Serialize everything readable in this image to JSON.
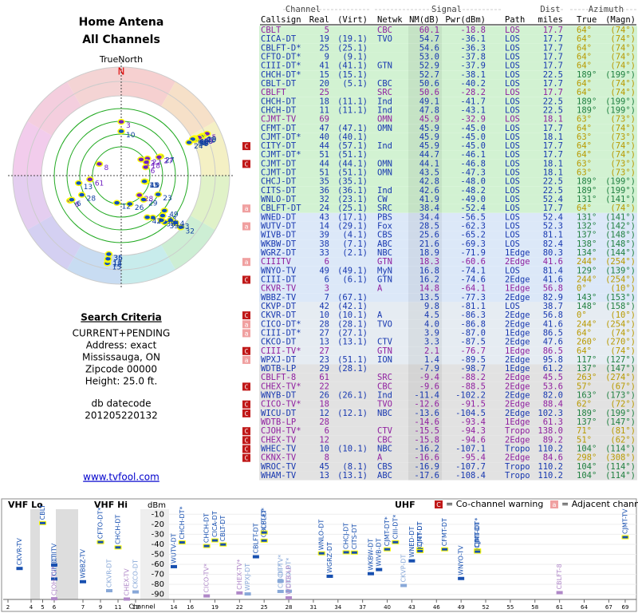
{
  "header": {
    "title": "Home Antena",
    "subtitle": "All Channels",
    "north_label": "TrueNorth",
    "north": "N"
  },
  "criteria": {
    "heading": "Search Criteria",
    "lines": [
      "CURRENT+PENDING",
      "Address: exact",
      "Mississauga, ON",
      "Zipcode 00000",
      "Height: 25.0 ft."
    ],
    "db_label": "db datecode",
    "db_value": "201205220132"
  },
  "link": "www.tvfool.com",
  "table": {
    "group_headers": [
      "Channel",
      "Signal",
      "Dist",
      "Azimuth"
    ],
    "columns": [
      "Callsign",
      "Real",
      "(Virt)",
      "Netwk",
      "NM(dB)",
      "Pwr(dBm)",
      "Path",
      "miles",
      "True",
      "(Magn)"
    ],
    "rows": [
      {
        "callsign": "CBLT",
        "real": 5,
        "netwk": "CBC",
        "nm": "60.1",
        "pwr": "-18.8",
        "path": "LOS",
        "miles": "17.7",
        "true": "64°",
        "magn": "(74°)"
      },
      {
        "callsign": "CICA-DT",
        "real": 19,
        "virt": "(19.1)",
        "netwk": "TVO",
        "nm": "54.7",
        "pwr": "-36.1",
        "path": "LOS",
        "miles": "17.7",
        "true": "64°",
        "magn": "(74°)"
      },
      {
        "callsign": "CBLFT-D*",
        "real": 25,
        "virt": "(25.1)",
        "nm": "54.6",
        "pwr": "-36.3",
        "path": "LOS",
        "miles": "17.7",
        "true": "64°",
        "magn": "(74°)"
      },
      {
        "callsign": "CFTO-DT*",
        "real": 9,
        "virt": "(9.1)",
        "nm": "53.0",
        "pwr": "-37.8",
        "path": "LOS",
        "miles": "17.7",
        "true": "64°",
        "magn": "(74°)"
      },
      {
        "callsign": "CIII-DT*",
        "real": 41,
        "virt": "(41.1)",
        "netwk": "GTN",
        "nm": "52.9",
        "pwr": "-37.9",
        "path": "LOS",
        "miles": "17.7",
        "true": "64°",
        "magn": "(74°)"
      },
      {
        "callsign": "CHCH-DT*",
        "real": 15,
        "virt": "(15.1)",
        "nm": "52.7",
        "pwr": "-38.1",
        "path": "LOS",
        "miles": "22.5",
        "true": "189°",
        "magn": "(199°)"
      },
      {
        "callsign": "CBLT-DT",
        "real": 20,
        "virt": "(5.1)",
        "netwk": "CBC",
        "nm": "50.6",
        "pwr": "-40.2",
        "path": "LOS",
        "miles": "17.7",
        "true": "64°",
        "magn": "(74°)"
      },
      {
        "callsign": "CBLFT",
        "real": 25,
        "netwk": "SRC",
        "nm": "50.6",
        "pwr": "-28.2",
        "path": "LOS",
        "miles": "17.7",
        "true": "64°",
        "magn": "(74°)"
      },
      {
        "callsign": "CHCH-DT",
        "real": 18,
        "virt": "(11.1)",
        "netwk": "Ind",
        "nm": "49.1",
        "pwr": "-41.7",
        "path": "LOS",
        "miles": "22.5",
        "true": "189°",
        "magn": "(199°)"
      },
      {
        "callsign": "CHCH-DT",
        "real": 11,
        "virt": "(11.1)",
        "netwk": "Ind",
        "nm": "47.8",
        "pwr": "-43.1",
        "path": "LOS",
        "miles": "22.5",
        "true": "189°",
        "magn": "(199°)"
      },
      {
        "callsign": "CJMT-TV",
        "real": 69,
        "netwk": "OMN",
        "nm": "45.9",
        "pwr": "-32.9",
        "path": "LOS",
        "miles": "18.1",
        "true": "63°",
        "magn": "(73°)"
      },
      {
        "callsign": "CFMT-DT",
        "real": 47,
        "virt": "(47.1)",
        "netwk": "OMN",
        "nm": "45.9",
        "pwr": "-45.0",
        "path": "LOS",
        "miles": "17.7",
        "true": "64°",
        "magn": "(74°)"
      },
      {
        "callsign": "CJMT-DT*",
        "real": 40,
        "virt": "(40.1)",
        "nm": "45.9",
        "pwr": "-45.0",
        "path": "LOS",
        "miles": "18.1",
        "true": "63°",
        "magn": "(73°)"
      },
      {
        "callsign": "CITY-DT",
        "real": 44,
        "virt": "(57.1)",
        "netwk": "Ind",
        "nm": "45.9",
        "pwr": "-45.0",
        "path": "LOS",
        "miles": "17.7",
        "true": "64°",
        "magn": "(74°)",
        "flag": "C"
      },
      {
        "callsign": "CJMT-DT*",
        "real": 51,
        "virt": "(51.1)",
        "nm": "44.7",
        "pwr": "-46.1",
        "path": "LOS",
        "miles": "17.7",
        "true": "64°",
        "magn": "(74°)"
      },
      {
        "callsign": "CJMT-DT",
        "real": 44,
        "virt": "(44.1)",
        "netwk": "OMN",
        "nm": "44.1",
        "pwr": "-46.8",
        "path": "LOS",
        "miles": "18.1",
        "true": "63°",
        "magn": "(73°)",
        "flag": "C"
      },
      {
        "callsign": "CJMT-DT",
        "real": 51,
        "virt": "(51.1)",
        "netwk": "OMN",
        "nm": "43.5",
        "pwr": "-47.3",
        "path": "LOS",
        "miles": "18.1",
        "true": "63°",
        "magn": "(73°)"
      },
      {
        "callsign": "CHCJ-DT",
        "real": 35,
        "virt": "(35.1)",
        "nm": "42.8",
        "pwr": "-48.0",
        "path": "LOS",
        "miles": "22.5",
        "true": "189°",
        "magn": "(199°)"
      },
      {
        "callsign": "CITS-DT",
        "real": 36,
        "virt": "(36.1)",
        "netwk": "Ind",
        "nm": "42.6",
        "pwr": "-48.2",
        "path": "LOS",
        "miles": "22.5",
        "true": "189°",
        "magn": "(199°)"
      },
      {
        "callsign": "WNLO-DT",
        "real": 32,
        "virt": "(23.1)",
        "netwk": "CW",
        "nm": "41.9",
        "pwr": "-49.0",
        "path": "LOS",
        "miles": "52.4",
        "true": "131°",
        "magn": "(141°)"
      },
      {
        "callsign": "CBLFT-DT",
        "real": 24,
        "virt": "(25.1)",
        "netwk": "SRC",
        "nm": "38.4",
        "pwr": "-52.4",
        "path": "LOS",
        "miles": "17.7",
        "true": "64°",
        "magn": "(74°)",
        "flag": "a"
      },
      {
        "callsign": "WNED-DT",
        "real": 43,
        "virt": "(17.1)",
        "netwk": "PBS",
        "nm": "34.4",
        "pwr": "-56.5",
        "path": "LOS",
        "miles": "52.4",
        "true": "131°",
        "magn": "(141°)"
      },
      {
        "callsign": "WUTV-DT",
        "real": 14,
        "virt": "(29.1)",
        "netwk": "Fox",
        "nm": "28.5",
        "pwr": "-62.3",
        "path": "LOS",
        "miles": "52.3",
        "true": "132°",
        "magn": "(142°)",
        "flag": "a"
      },
      {
        "callsign": "WIVB-DT",
        "real": 39,
        "virt": "(4.1)",
        "netwk": "CBS",
        "nm": "25.6",
        "pwr": "-65.2",
        "path": "LOS",
        "miles": "81.1",
        "true": "137°",
        "magn": "(148°)"
      },
      {
        "callsign": "WKBW-DT",
        "real": 38,
        "virt": "(7.1)",
        "netwk": "ABC",
        "nm": "21.6",
        "pwr": "-69.3",
        "path": "LOS",
        "miles": "82.4",
        "true": "138°",
        "magn": "(148°)"
      },
      {
        "callsign": "WGRZ-DT",
        "real": 33,
        "virt": "(2.1)",
        "netwk": "NBC",
        "nm": "18.9",
        "pwr": "-71.9",
        "path": "1Edge",
        "miles": "80.3",
        "true": "134°",
        "magn": "(144°)"
      },
      {
        "callsign": "CIIITV",
        "real": 6,
        "netwk": "GTN",
        "nm": "18.3",
        "pwr": "-60.6",
        "path": "2Edge",
        "miles": "41.6",
        "true": "244°",
        "magn": "(254°)",
        "flag": "a"
      },
      {
        "callsign": "WNYO-TV",
        "real": 49,
        "virt": "(49.1)",
        "netwk": "MyN",
        "nm": "16.8",
        "pwr": "-74.1",
        "path": "LOS",
        "miles": "81.4",
        "true": "129°",
        "magn": "(139°)"
      },
      {
        "callsign": "CIII-DT",
        "real": 6,
        "virt": "(6.1)",
        "netwk": "GTN",
        "nm": "16.2",
        "pwr": "-74.6",
        "path": "2Edge",
        "miles": "41.6",
        "true": "244°",
        "magn": "(254°)",
        "flag": "C"
      },
      {
        "callsign": "CKVR-TV",
        "real": 3,
        "netwk": "A",
        "nm": "14.8",
        "pwr": "-64.1",
        "path": "1Edge",
        "miles": "56.8",
        "true": "0°",
        "magn": "(10°)"
      },
      {
        "callsign": "WBBZ-TV",
        "real": 7,
        "virt": "(67.1)",
        "nm": "13.5",
        "pwr": "-77.3",
        "path": "2Edge",
        "miles": "82.9",
        "true": "143°",
        "magn": "(153°)"
      },
      {
        "callsign": "CKVP-DT",
        "real": 42,
        "virt": "(42.1)",
        "nm": "9.8",
        "pwr": "-81.1",
        "path": "LOS",
        "miles": "38.7",
        "true": "148°",
        "magn": "(158°)"
      },
      {
        "callsign": "CKVR-DT",
        "real": 10,
        "virt": "(10.1)",
        "netwk": "A",
        "nm": "4.5",
        "pwr": "-86.3",
        "path": "2Edge",
        "miles": "56.8",
        "true": "0°",
        "magn": "(10°)",
        "flag": "C"
      },
      {
        "callsign": "CICO-DT*",
        "real": 28,
        "virt": "(28.1)",
        "netwk": "TVO",
        "nm": "4.0",
        "pwr": "-86.8",
        "path": "2Edge",
        "miles": "41.6",
        "true": "244°",
        "magn": "(254°)",
        "flag": "a"
      },
      {
        "callsign": "CIII-DT*",
        "real": 27,
        "virt": "(27.1)",
        "nm": "3.9",
        "pwr": "-87.0",
        "path": "1Edge",
        "miles": "86.5",
        "true": "64°",
        "magn": "(74°)",
        "flag": "a"
      },
      {
        "callsign": "CKCO-DT",
        "real": 13,
        "virt": "(13.1)",
        "netwk": "CTV",
        "nm": "3.3",
        "pwr": "-87.5",
        "path": "2Edge",
        "miles": "47.6",
        "true": "260°",
        "magn": "(270°)"
      },
      {
        "callsign": "CIII-TV*",
        "real": 27,
        "netwk": "GTN",
        "nm": "2.1",
        "pwr": "-76.7",
        "path": "1Edge",
        "miles": "86.5",
        "true": "64°",
        "magn": "(74°)",
        "flag": "C"
      },
      {
        "callsign": "WPXJ-DT",
        "real": 23,
        "virt": "(51.1)",
        "netwk": "ION",
        "nm": "1.4",
        "pwr": "-89.5",
        "path": "2Edge",
        "miles": "95.8",
        "true": "117°",
        "magn": "(127°)",
        "flag": "a"
      },
      {
        "callsign": "WDTB-LP",
        "real": 29,
        "virt": "(28.1)",
        "nm": "-7.9",
        "pwr": "-98.7",
        "path": "1Edge",
        "miles": "61.2",
        "true": "137°",
        "magn": "(147°)"
      },
      {
        "callsign": "CBLFT-8",
        "real": 61,
        "netwk": "SRC",
        "nm": "-9.4",
        "pwr": "-88.2",
        "path": "2Edge",
        "miles": "45.5",
        "true": "263°",
        "magn": "(274°)"
      },
      {
        "callsign": "CHEX-TV*",
        "real": 22,
        "netwk": "CBC",
        "nm": "-9.6",
        "pwr": "-88.5",
        "path": "2Edge",
        "miles": "53.6",
        "true": "57°",
        "magn": "(67°)",
        "flag": "C"
      },
      {
        "callsign": "WNYB-DT",
        "real": 26,
        "virt": "(26.1)",
        "netwk": "Ind",
        "nm": "-11.4",
        "pwr": "-102.2",
        "path": "2Edge",
        "miles": "82.0",
        "true": "163°",
        "magn": "(173°)"
      },
      {
        "callsign": "CICO-TV*",
        "real": 18,
        "netwk": "TVO",
        "nm": "-12.6",
        "pwr": "-91.5",
        "path": "2Edge",
        "miles": "88.4",
        "true": "62°",
        "magn": "(72°)",
        "flag": "C"
      },
      {
        "callsign": "WICU-DT",
        "real": 12,
        "virt": "(12.1)",
        "netwk": "NBC",
        "nm": "-13.6",
        "pwr": "-104.5",
        "path": "2Edge",
        "miles": "102.3",
        "true": "189°",
        "magn": "(199°)",
        "flag": "C"
      },
      {
        "callsign": "WDTB-LP",
        "real": 28,
        "nm": "-14.6",
        "pwr": "-93.4",
        "path": "1Edge",
        "miles": "61.3",
        "true": "137°",
        "magn": "(147°)"
      },
      {
        "callsign": "CJOH-TV*",
        "real": 6,
        "netwk": "CTV",
        "nm": "-15.5",
        "pwr": "-94.3",
        "path": "Tropo",
        "miles": "138.0",
        "true": "71°",
        "magn": "(81°)",
        "flag": "C"
      },
      {
        "callsign": "CHEX-TV",
        "real": 12,
        "netwk": "CBC",
        "nm": "-15.8",
        "pwr": "-94.6",
        "path": "2Edge",
        "miles": "89.2",
        "true": "51°",
        "magn": "(62°)",
        "flag": "C"
      },
      {
        "callsign": "WHEC-TV",
        "real": 10,
        "virt": "(10.1)",
        "netwk": "NBC",
        "nm": "-16.2",
        "pwr": "-107.1",
        "path": "Tropo",
        "miles": "110.2",
        "true": "104°",
        "magn": "(114°)",
        "flag": "C"
      },
      {
        "callsign": "CKNX-TV",
        "real": 8,
        "netwk": "A",
        "nm": "-16.6",
        "pwr": "-95.4",
        "path": "2Edge",
        "miles": "84.6",
        "true": "298°",
        "magn": "(308°)",
        "flag": "C"
      },
      {
        "callsign": "WROC-TV",
        "real": 45,
        "virt": "(8.1)",
        "netwk": "CBS",
        "nm": "-16.9",
        "pwr": "-107.7",
        "path": "Tropo",
        "miles": "110.2",
        "true": "104°",
        "magn": "(114°)"
      },
      {
        "callsign": "WHAM-TV",
        "real": 13,
        "virt": "(13.1)",
        "netwk": "ABC",
        "nm": "-17.6",
        "pwr": "-108.4",
        "path": "Tropo",
        "miles": "110.2",
        "true": "104°",
        "magn": "(114°)"
      }
    ]
  },
  "chart_data": {
    "type": "spectrum",
    "y_title": "dBm",
    "x_title": "Channel",
    "bands": [
      "VHF Lo",
      "VHF Hi",
      "UHF"
    ],
    "ylim": [
      -5,
      -95
    ],
    "yticks": [
      -10,
      -20,
      -30,
      -40,
      -50,
      -60,
      -70,
      -80,
      -90
    ],
    "xticks": [
      2,
      4,
      5,
      6,
      7,
      9,
      11,
      13,
      14,
      16,
      19,
      22,
      25,
      28,
      31,
      34,
      37,
      40,
      43,
      46,
      49,
      52,
      55,
      58,
      61,
      64,
      67,
      69
    ],
    "legend": [
      {
        "icon": "C",
        "text": "= Co-channel warning"
      },
      {
        "icon": "a",
        "text": "= Adjacent channel warning"
      }
    ]
  }
}
